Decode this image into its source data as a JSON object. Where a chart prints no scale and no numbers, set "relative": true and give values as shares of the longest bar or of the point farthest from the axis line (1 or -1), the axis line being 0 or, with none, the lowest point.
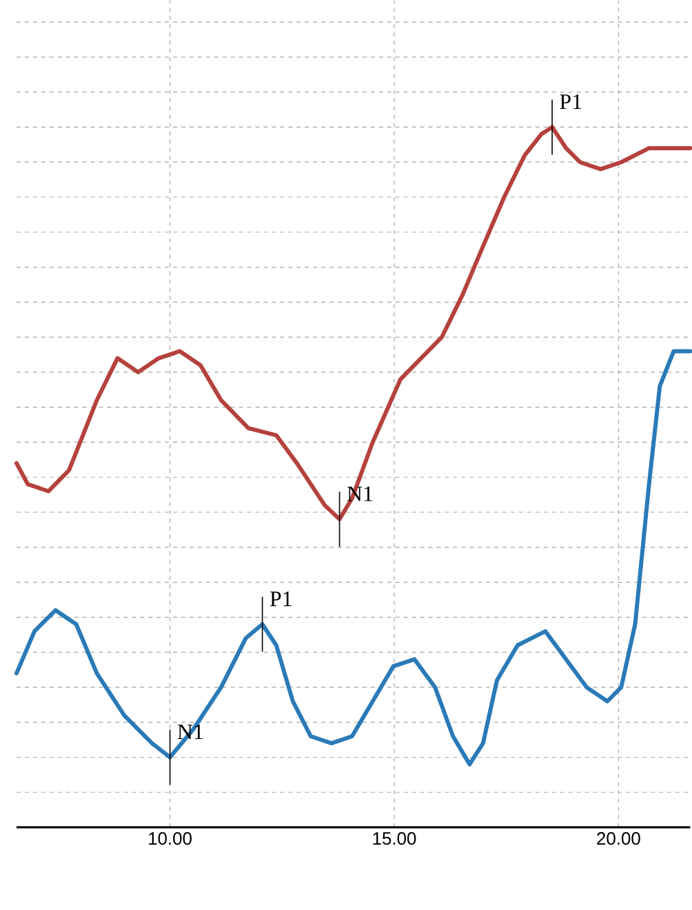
{
  "chart_data": {
    "type": "line",
    "relative": true,
    "tick_labels": "x",
    "grid": true,
    "line_style": "solid",
    "xlim": [
      6.58,
      21.6
    ],
    "xticks": [
      {
        "value": 10,
        "label": "10.00"
      },
      {
        "value": 15,
        "label": "15.00"
      },
      {
        "value": 20,
        "label": "20.00"
      }
    ],
    "series": [
      {
        "color": "#b5413d",
        "x": [
          6.58,
          6.83,
          7.29,
          7.75,
          8.37,
          8.83,
          9.29,
          9.75,
          10.22,
          10.68,
          11.14,
          11.75,
          12.37,
          12.83,
          13.45,
          13.78,
          14.06,
          14.52,
          15.14,
          15.6,
          16.06,
          16.52,
          16.98,
          17.45,
          17.91,
          18.28,
          18.52,
          18.83,
          19.14,
          19.6,
          20.06,
          20.68,
          21.29,
          21.6
        ],
        "values": [
          0.52,
          0.49,
          0.48,
          0.51,
          0.61,
          0.67,
          0.65,
          0.67,
          0.68,
          0.66,
          0.61,
          0.57,
          0.56,
          0.52,
          0.46,
          0.44,
          0.47,
          0.55,
          0.64,
          0.67,
          0.7,
          0.76,
          0.83,
          0.9,
          0.96,
          0.99,
          1.0,
          0.97,
          0.95,
          0.94,
          0.95,
          0.97,
          0.97,
          0.97
        ]
      },
      {
        "color": "#2a7ab8",
        "x": [
          6.58,
          6.98,
          7.45,
          7.91,
          8.37,
          8.98,
          9.6,
          10.0,
          10.52,
          11.14,
          11.69,
          12.06,
          12.37,
          12.74,
          13.14,
          13.6,
          14.06,
          14.52,
          14.98,
          15.45,
          15.91,
          16.31,
          16.68,
          16.98,
          17.29,
          17.75,
          18.37,
          18.83,
          19.29,
          19.75,
          20.06,
          20.37,
          20.68,
          20.92,
          21.23,
          21.6
        ],
        "values": [
          0.22,
          0.28,
          0.31,
          0.29,
          0.22,
          0.16,
          0.12,
          0.1,
          0.14,
          0.2,
          0.27,
          0.29,
          0.26,
          0.18,
          0.13,
          0.12,
          0.13,
          0.18,
          0.23,
          0.24,
          0.2,
          0.13,
          0.09,
          0.12,
          0.21,
          0.26,
          0.28,
          0.24,
          0.2,
          0.18,
          0.2,
          0.29,
          0.49,
          0.63,
          0.68,
          0.68
        ]
      }
    ],
    "annotations": [
      {
        "text": "P1",
        "x": 18.52,
        "y": 1.0
      },
      {
        "text": "N1",
        "x": 13.78,
        "y": 0.44
      },
      {
        "text": "P1",
        "x": 12.06,
        "y": 0.29
      },
      {
        "text": "N1",
        "x": 10.0,
        "y": 0.1
      }
    ]
  }
}
